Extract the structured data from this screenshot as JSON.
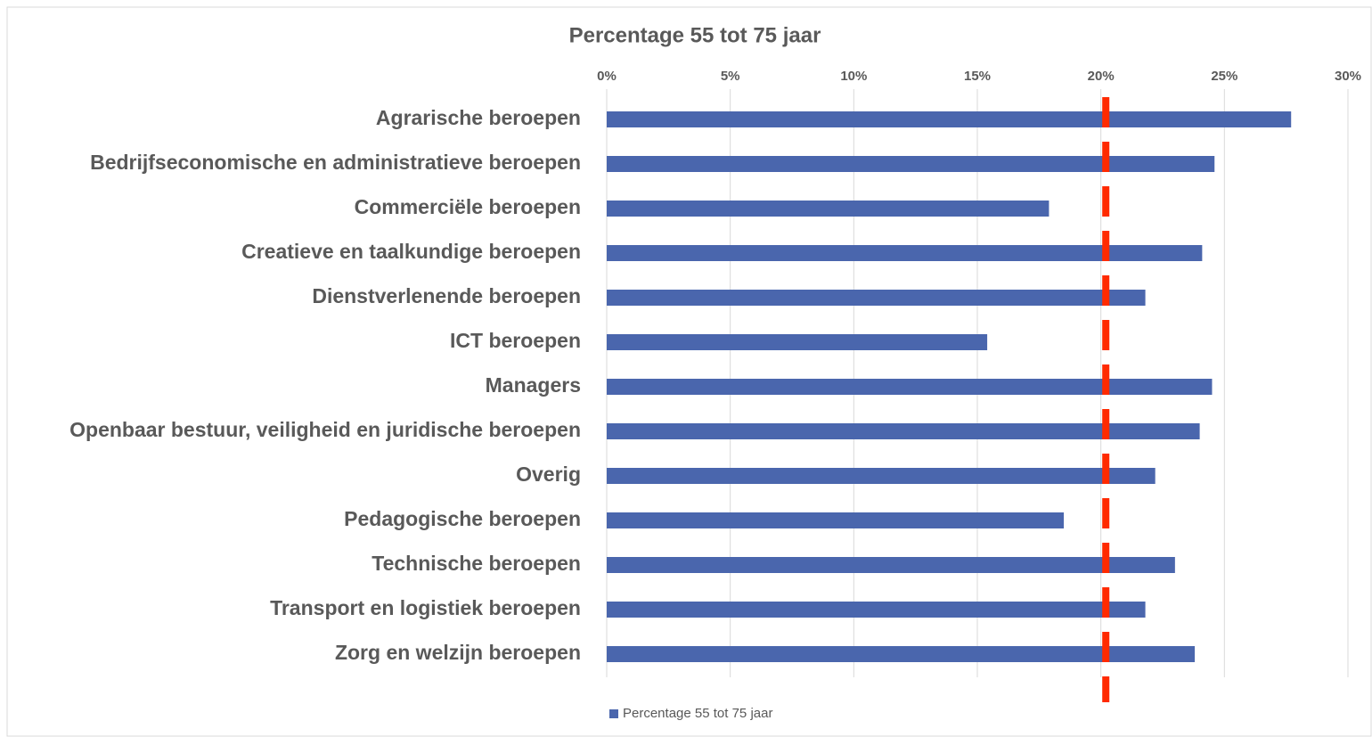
{
  "chart_data": {
    "type": "barh",
    "title": "Percentage 55 tot 75 jaar",
    "categories": [
      "Agrarische beroepen",
      "Bedrijfseconomische en administratieve beroepen",
      "Commerciële beroepen",
      "Creatieve en taalkundige beroepen",
      "Dienstverlenende beroepen",
      "ICT beroepen",
      "Managers",
      "Openbaar bestuur, veiligheid en juridische beroepen",
      "Overig",
      "Pedagogische beroepen",
      "Technische beroepen",
      "Transport en logistiek beroepen",
      "Zorg en welzijn beroepen"
    ],
    "series": [
      {
        "name": "Percentage 55 tot 75 jaar",
        "color": "#4a66ad",
        "values": [
          27.7,
          24.6,
          17.9,
          24.1,
          21.8,
          15.4,
          24.5,
          24.0,
          22.2,
          18.5,
          23.0,
          21.8,
          23.8
        ]
      }
    ],
    "reference_line": {
      "value": 20.2,
      "color": "#ff2a00"
    },
    "xlim": [
      0,
      30
    ],
    "xticks": [
      {
        "value": 0,
        "label": "0%"
      },
      {
        "value": 5,
        "label": "5%"
      },
      {
        "value": 10,
        "label": "10%"
      },
      {
        "value": 15,
        "label": "15%"
      },
      {
        "value": 20,
        "label": "20%"
      },
      {
        "value": 25,
        "label": "25%"
      },
      {
        "value": 30,
        "label": "30%"
      }
    ],
    "grid": true,
    "legend": "bottom"
  }
}
